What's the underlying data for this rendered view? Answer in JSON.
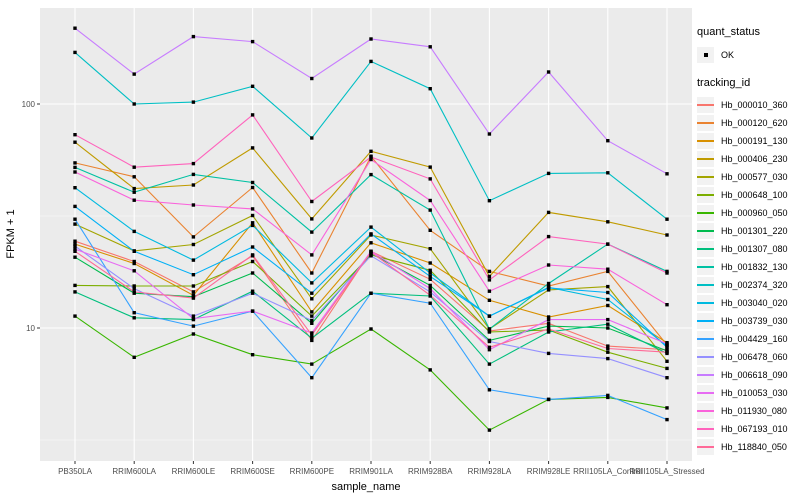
{
  "figure": {
    "background": "#FFFFFF",
    "panel_background": "#EBEBEB",
    "grid_major_color": "#FFFFFF",
    "grid_minor_color": "#F6F6F6",
    "tick_color": "#333333",
    "axis_text_color": "#4D4D4D",
    "point_color": "#000000"
  },
  "axes": {
    "x_title": "sample_name",
    "y_title": "FPKM + 1"
  },
  "legend": {
    "quant_title": "quant_status",
    "quant_items": [
      {
        "label": "OK",
        "marker": "point"
      }
    ],
    "tracking_title": "tracking_id"
  },
  "chart_data": {
    "type": "line",
    "title": "",
    "xlabel": "sample_name",
    "ylabel": "FPKM + 1",
    "y_scale": "log10",
    "ylim": [
      3,
      270
    ],
    "grid": true,
    "legend_position": "right",
    "y_ticks": [
      {
        "label": "100",
        "value": 100
      },
      {
        "label": "10",
        "value": 10
      }
    ],
    "y_minor_breaks": [
      3.162,
      31.62
    ],
    "categories": [
      "PB350LA",
      "RRIM600LA",
      "RRIM600LE",
      "RRIM600SE",
      "RRIM600PE",
      "RRIM901LA",
      "RRIM928BA",
      "RRIM928LA",
      "RRIM928LE",
      "RRII105LA_Control",
      "RRII105LA_Stressed"
    ],
    "series": [
      {
        "name": "Hb_000010_360",
        "color": "#F8766D",
        "values": [
          24.4,
          19.8,
          14.5,
          21.0,
          8.8,
          22.0,
          16.5,
          9.7,
          10.5,
          8.3,
          8.0
        ]
      },
      {
        "name": "Hb_000120_620",
        "color": "#EA8331",
        "values": [
          54.6,
          47.3,
          25.5,
          42.4,
          17.6,
          58.5,
          27.3,
          17.9,
          15.4,
          17.9,
          8.4
        ]
      },
      {
        "name": "Hb_000191_130",
        "color": "#D89000",
        "values": [
          23.7,
          19.4,
          14.0,
          29.5,
          11.8,
          24.0,
          19.5,
          13.3,
          11.2,
          12.6,
          8.6
        ]
      },
      {
        "name": "Hb_000406_230",
        "color": "#C09B00",
        "values": [
          67.5,
          41.9,
          43.5,
          63.7,
          30.7,
          61.5,
          52.3,
          17.0,
          32.8,
          29.8,
          26.0
        ]
      },
      {
        "name": "Hb_000577_030",
        "color": "#A3A500",
        "values": [
          29.1,
          22.1,
          23.6,
          31.8,
          13.5,
          26.0,
          22.6,
          9.9,
          14.8,
          15.3,
          7.1
        ]
      },
      {
        "name": "Hb_000648_100",
        "color": "#7CAE00",
        "values": [
          15.5,
          15.4,
          15.4,
          19.8,
          11.3,
          21.2,
          18.1,
          9.6,
          9.8,
          7.8,
          6.6
        ]
      },
      {
        "name": "Hb_000960_050",
        "color": "#39B600",
        "values": [
          11.3,
          7.4,
          9.4,
          7.6,
          6.9,
          9.9,
          6.5,
          3.5,
          4.8,
          4.9,
          4.4
        ]
      },
      {
        "name": "Hb_001301_220",
        "color": "#00BB4E",
        "values": [
          20.7,
          14.3,
          13.8,
          17.6,
          10.5,
          21.5,
          15.5,
          8.8,
          10.2,
          10.0,
          7.9
        ]
      },
      {
        "name": "Hb_001307_080",
        "color": "#00BF7D",
        "values": [
          14.5,
          11.1,
          10.9,
          14.6,
          9.0,
          14.3,
          13.9,
          6.9,
          9.6,
          10.4,
          7.7
        ]
      },
      {
        "name": "Hb_001832_130",
        "color": "#00C1A3",
        "values": [
          52.1,
          40.4,
          48.5,
          44.6,
          26.8,
          48.4,
          33.6,
          9.9,
          15.8,
          23.7,
          17.9
        ]
      },
      {
        "name": "Hb_002374_320",
        "color": "#00BFC4",
        "values": [
          170,
          100,
          102,
          120,
          70.5,
          155,
          117,
          37.0,
          49.0,
          49.3,
          30.6
        ]
      },
      {
        "name": "Hb_003040_020",
        "color": "#00BAE0",
        "values": [
          42.3,
          27.0,
          20.1,
          28.7,
          15.9,
          28.2,
          17.6,
          11.3,
          15.2,
          13.4,
          8.3
        ]
      },
      {
        "name": "Hb_003739_030",
        "color": "#00B0F6",
        "values": [
          34.9,
          22.0,
          17.3,
          23.0,
          14.3,
          26.3,
          17.0,
          11.3,
          15.1,
          14.4,
          8.2
        ]
      },
      {
        "name": "Hb_004429_160",
        "color": "#35A2FF",
        "values": [
          30.6,
          11.7,
          10.2,
          11.9,
          6.0,
          14.3,
          12.9,
          5.3,
          4.8,
          5.0,
          3.9
        ]
      },
      {
        "name": "Hb_006478_060",
        "color": "#9590FF",
        "values": [
          23.2,
          15.0,
          11.3,
          14.3,
          10.8,
          21.0,
          14.5,
          8.7,
          7.7,
          7.3,
          6.0
        ]
      },
      {
        "name": "Hb_006618_090",
        "color": "#C77CFF",
        "values": [
          218,
          136,
          200,
          190,
          130,
          195,
          180,
          73.5,
          139,
          68.6,
          48.8
        ]
      },
      {
        "name": "Hb_010053_030",
        "color": "#E76BF3",
        "values": [
          22.5,
          18.0,
          11.0,
          11.9,
          9.5,
          22.0,
          15.0,
          8.0,
          10.9,
          10.9,
          8.5
        ]
      },
      {
        "name": "Hb_011930_080",
        "color": "#FA62DB",
        "values": [
          49.7,
          37.2,
          35.4,
          34.0,
          21.2,
          56.5,
          37.1,
          14.6,
          19.1,
          18.3,
          12.7
        ]
      },
      {
        "name": "Hb_067193_010",
        "color": "#FF62BC",
        "values": [
          72.9,
          52.2,
          54.2,
          89.4,
          36.7,
          58.0,
          46.3,
          16.4,
          25.6,
          23.7,
          17.6
        ]
      },
      {
        "name": "Hb_118840_050",
        "color": "#FF6A98",
        "values": [
          22.0,
          14.5,
          13.6,
          21.2,
          9.3,
          21.8,
          14.0,
          8.2,
          9.9,
          8.1,
          7.8
        ]
      }
    ]
  }
}
